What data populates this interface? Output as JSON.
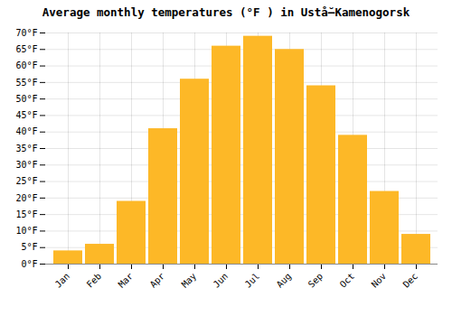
{
  "chart_data": {
    "type": "bar",
    "title": "Average monthly temperatures (°F ) in Ustå̆–Kamenogorsk",
    "categories": [
      "Jan",
      "Feb",
      "Mar",
      "Apr",
      "May",
      "Jun",
      "Jul",
      "Aug",
      "Sep",
      "Oct",
      "Nov",
      "Dec"
    ],
    "values": [
      4,
      6,
      19,
      41,
      56,
      66,
      69,
      65,
      54,
      39,
      22,
      9
    ],
    "color": "#FDB827",
    "ylim": [
      0,
      70
    ],
    "yticks": [
      {
        "value": 0,
        "label": "0°F"
      },
      {
        "value": 5,
        "label": "5°F"
      },
      {
        "value": 10,
        "label": "10°F"
      },
      {
        "value": 15,
        "label": "15°F"
      },
      {
        "value": 20,
        "label": "20°F"
      },
      {
        "value": 25,
        "label": "25°F"
      },
      {
        "value": 30,
        "label": "30°F"
      },
      {
        "value": 35,
        "label": "35°F"
      },
      {
        "value": 40,
        "label": "40°F"
      },
      {
        "value": 45,
        "label": "45°F"
      },
      {
        "value": 50,
        "label": "50°F"
      },
      {
        "value": 55,
        "label": "55°F"
      },
      {
        "value": 60,
        "label": "60°F"
      },
      {
        "value": 65,
        "label": "65°F"
      },
      {
        "value": 70,
        "label": "70°F"
      }
    ],
    "grid": true
  }
}
